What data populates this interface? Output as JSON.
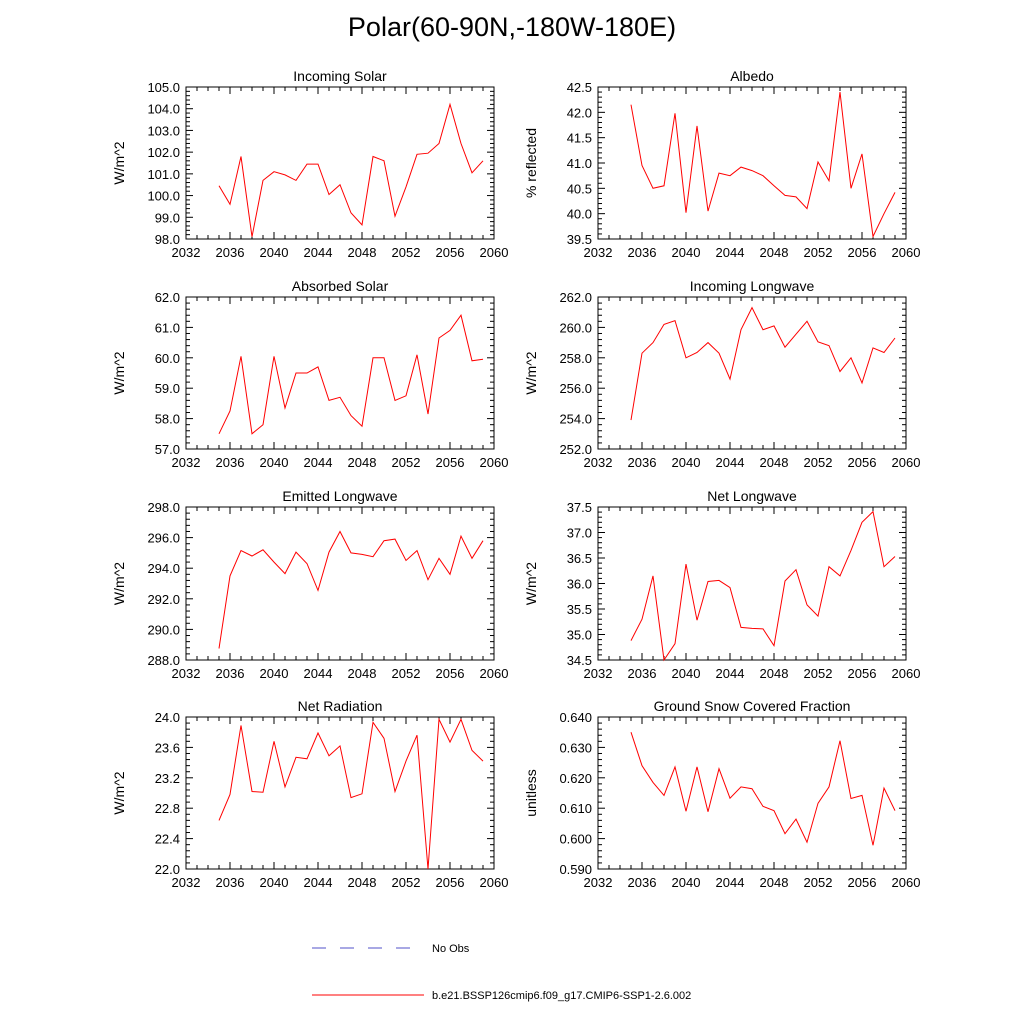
{
  "title": "Polar(60-90N,-180W-180E)",
  "legend": {
    "entries": [
      {
        "label": "No Obs",
        "color": "#5050c8",
        "style": "dashed"
      },
      {
        "label": "b.e21.BSSP126cmip6.f09_g17.CMIP6-SSP1-2.6.002",
        "color": "#ff0000",
        "style": "solid"
      }
    ]
  },
  "chart_data": [
    {
      "type": "line",
      "title": "Incoming Solar",
      "xlabel": "",
      "ylabel": "W/m^2",
      "xlim": [
        2032,
        2060
      ],
      "xticks": [
        2032,
        2036,
        2040,
        2044,
        2048,
        2052,
        2056,
        2060
      ],
      "ylim": [
        98.0,
        105.0
      ],
      "yticks": [
        98.0,
        99.0,
        100.0,
        101.0,
        102.0,
        103.0,
        104.0,
        105.0
      ],
      "ytick_labels": [
        "98.0",
        "99.0",
        "100.0",
        "101.0",
        "102.0",
        "103.0",
        "104.0",
        "105.0"
      ],
      "series": [
        {
          "name": "b.e21.BSSP126cmip6.f09_g17.CMIP6-SSP1-2.6.002",
          "color": "#ff0000",
          "x": [
            2035,
            2036,
            2037,
            2038,
            2039,
            2040,
            2041,
            2042,
            2043,
            2044,
            2045,
            2046,
            2047,
            2048,
            2049,
            2050,
            2051,
            2052,
            2053,
            2054,
            2055,
            2056,
            2057,
            2058,
            2059
          ],
          "y": [
            100.45,
            99.6,
            101.8,
            98.1,
            100.7,
            101.1,
            100.95,
            100.7,
            101.45,
            101.45,
            100.05,
            100.5,
            99.2,
            98.65,
            101.8,
            101.6,
            99.05,
            100.4,
            101.9,
            101.95,
            102.4,
            104.2,
            102.4,
            101.05,
            101.6
          ]
        }
      ]
    },
    {
      "type": "line",
      "title": "Albedo",
      "xlabel": "",
      "ylabel": "% reflected",
      "xlim": [
        2032,
        2060
      ],
      "xticks": [
        2032,
        2036,
        2040,
        2044,
        2048,
        2052,
        2056,
        2060
      ],
      "ylim": [
        39.5,
        42.5
      ],
      "yticks": [
        39.5,
        40.0,
        40.5,
        41.0,
        41.5,
        42.0,
        42.5
      ],
      "ytick_labels": [
        "39.5",
        "40.0",
        "40.5",
        "41.0",
        "41.5",
        "42.0",
        "42.5"
      ],
      "series": [
        {
          "name": "b.e21.BSSP126cmip6.f09_g17.CMIP6-SSP1-2.6.002",
          "color": "#ff0000",
          "x": [
            2035,
            2036,
            2037,
            2038,
            2039,
            2040,
            2041,
            2042,
            2043,
            2044,
            2045,
            2046,
            2047,
            2048,
            2049,
            2050,
            2051,
            2052,
            2053,
            2054,
            2055,
            2056,
            2057,
            2058,
            2059
          ],
          "y": [
            42.15,
            40.95,
            40.5,
            40.55,
            41.98,
            40.02,
            41.73,
            40.05,
            40.8,
            40.75,
            40.92,
            40.85,
            40.75,
            40.55,
            40.36,
            40.33,
            40.1,
            41.02,
            40.65,
            42.4,
            40.5,
            41.18,
            39.55,
            40.0,
            40.42
          ]
        }
      ]
    },
    {
      "type": "line",
      "title": "Absorbed Solar",
      "xlabel": "",
      "ylabel": "W/m^2",
      "xlim": [
        2032,
        2060
      ],
      "xticks": [
        2032,
        2036,
        2040,
        2044,
        2048,
        2052,
        2056,
        2060
      ],
      "ylim": [
        57.0,
        62.0
      ],
      "yticks": [
        57.0,
        58.0,
        59.0,
        60.0,
        61.0,
        62.0
      ],
      "ytick_labels": [
        "57.0",
        "58.0",
        "59.0",
        "60.0",
        "61.0",
        "62.0"
      ],
      "series": [
        {
          "name": "b.e21.BSSP126cmip6.f09_g17.CMIP6-SSP1-2.6.002",
          "color": "#ff0000",
          "x": [
            2035,
            2036,
            2037,
            2038,
            2039,
            2040,
            2041,
            2042,
            2043,
            2044,
            2045,
            2046,
            2047,
            2048,
            2049,
            2050,
            2051,
            2052,
            2053,
            2054,
            2055,
            2056,
            2057,
            2058,
            2059
          ],
          "y": [
            57.5,
            58.25,
            60.05,
            57.5,
            57.8,
            60.05,
            58.35,
            59.5,
            59.5,
            59.7,
            58.6,
            58.7,
            58.1,
            57.75,
            60.0,
            60.0,
            58.6,
            58.75,
            60.1,
            58.15,
            60.65,
            60.9,
            61.4,
            59.9,
            59.95
          ]
        }
      ]
    },
    {
      "type": "line",
      "title": "Incoming Longwave",
      "xlabel": "",
      "ylabel": "W/m^2",
      "xlim": [
        2032,
        2060
      ],
      "xticks": [
        2032,
        2036,
        2040,
        2044,
        2048,
        2052,
        2056,
        2060
      ],
      "ylim": [
        252.0,
        262.0
      ],
      "yticks": [
        252.0,
        254.0,
        256.0,
        258.0,
        260.0,
        262.0
      ],
      "ytick_labels": [
        "252.0",
        "254.0",
        "256.0",
        "258.0",
        "260.0",
        "262.0"
      ],
      "series": [
        {
          "name": "b.e21.BSSP126cmip6.f09_g17.CMIP6-SSP1-2.6.002",
          "color": "#ff0000",
          "x": [
            2035,
            2036,
            2037,
            2038,
            2039,
            2040,
            2041,
            2042,
            2043,
            2044,
            2045,
            2046,
            2047,
            2048,
            2049,
            2050,
            2051,
            2052,
            2053,
            2054,
            2055,
            2056,
            2057,
            2058,
            2059
          ],
          "y": [
            253.9,
            258.3,
            259.0,
            260.2,
            260.45,
            258.0,
            258.35,
            259.0,
            258.3,
            256.6,
            259.85,
            261.3,
            259.85,
            260.1,
            258.7,
            259.55,
            260.4,
            259.05,
            258.8,
            257.1,
            258.0,
            256.35,
            258.65,
            258.35,
            259.3
          ]
        }
      ]
    },
    {
      "type": "line",
      "title": "Emitted Longwave",
      "xlabel": "",
      "ylabel": "W/m^2",
      "xlim": [
        2032,
        2060
      ],
      "xticks": [
        2032,
        2036,
        2040,
        2044,
        2048,
        2052,
        2056,
        2060
      ],
      "ylim": [
        288.0,
        298.0
      ],
      "yticks": [
        288.0,
        290.0,
        292.0,
        294.0,
        296.0,
        298.0
      ],
      "ytick_labels": [
        "288.0",
        "290.0",
        "292.0",
        "294.0",
        "296.0",
        "298.0"
      ],
      "series": [
        {
          "name": "b.e21.BSSP126cmip6.f09_g17.CMIP6-SSP1-2.6.002",
          "color": "#ff0000",
          "x": [
            2035,
            2036,
            2037,
            2038,
            2039,
            2040,
            2041,
            2042,
            2043,
            2044,
            2045,
            2046,
            2047,
            2048,
            2049,
            2050,
            2051,
            2052,
            2053,
            2054,
            2055,
            2056,
            2057,
            2058,
            2059
          ],
          "y": [
            288.75,
            293.5,
            295.15,
            294.8,
            295.2,
            294.4,
            293.65,
            295.05,
            294.3,
            292.55,
            295.05,
            296.4,
            295.0,
            294.9,
            294.75,
            295.8,
            295.9,
            294.5,
            295.15,
            293.25,
            294.65,
            293.6,
            296.1,
            294.65,
            295.8
          ]
        }
      ]
    },
    {
      "type": "line",
      "title": "Net Longwave",
      "xlabel": "",
      "ylabel": "W/m^2",
      "xlim": [
        2032,
        2060
      ],
      "xticks": [
        2032,
        2036,
        2040,
        2044,
        2048,
        2052,
        2056,
        2060
      ],
      "ylim": [
        34.5,
        37.5
      ],
      "yticks": [
        34.5,
        35.0,
        35.5,
        36.0,
        36.5,
        37.0,
        37.5
      ],
      "ytick_labels": [
        "34.5",
        "35.0",
        "35.5",
        "36.0",
        "36.5",
        "37.0",
        "37.5"
      ],
      "series": [
        {
          "name": "b.e21.BSSP126cmip6.f09_g17.CMIP6-SSP1-2.6.002",
          "color": "#ff0000",
          "x": [
            2035,
            2036,
            2037,
            2038,
            2039,
            2040,
            2041,
            2042,
            2043,
            2044,
            2045,
            2046,
            2047,
            2048,
            2049,
            2050,
            2051,
            2052,
            2053,
            2054,
            2055,
            2056,
            2057,
            2058,
            2059
          ],
          "y": [
            34.88,
            35.3,
            36.15,
            34.5,
            34.82,
            36.38,
            35.28,
            36.04,
            36.06,
            35.92,
            35.14,
            35.12,
            35.11,
            34.78,
            36.05,
            36.27,
            35.58,
            35.36,
            36.33,
            36.15,
            36.65,
            37.2,
            37.41,
            36.33,
            36.53
          ]
        }
      ]
    },
    {
      "type": "line",
      "title": "Net Radiation",
      "xlabel": "",
      "ylabel": "W/m^2",
      "xlim": [
        2032,
        2060
      ],
      "xticks": [
        2032,
        2036,
        2040,
        2044,
        2048,
        2052,
        2056,
        2060
      ],
      "ylim": [
        22.0,
        24.0
      ],
      "yticks": [
        22.0,
        22.4,
        22.8,
        23.2,
        23.6,
        24.0
      ],
      "ytick_labels": [
        "22.0",
        "22.4",
        "22.8",
        "23.2",
        "23.6",
        "24.0"
      ],
      "series": [
        {
          "name": "b.e21.BSSP126cmip6.f09_g17.CMIP6-SSP1-2.6.002",
          "color": "#ff0000",
          "x": [
            2035,
            2036,
            2037,
            2038,
            2039,
            2040,
            2041,
            2042,
            2043,
            2044,
            2045,
            2046,
            2047,
            2048,
            2049,
            2050,
            2051,
            2052,
            2053,
            2054,
            2055,
            2056,
            2057,
            2058,
            2059
          ],
          "y": [
            22.64,
            22.98,
            23.89,
            23.02,
            23.01,
            23.68,
            23.08,
            23.47,
            23.45,
            23.79,
            23.49,
            23.62,
            22.94,
            22.99,
            23.93,
            23.72,
            23.02,
            23.42,
            23.76,
            22.0,
            23.97,
            23.67,
            23.97,
            23.56,
            23.42
          ]
        }
      ]
    },
    {
      "type": "line",
      "title": "Ground Snow Covered Fraction",
      "xlabel": "",
      "ylabel": "unitless",
      "xlim": [
        2032,
        2060
      ],
      "xticks": [
        2032,
        2036,
        2040,
        2044,
        2048,
        2052,
        2056,
        2060
      ],
      "ylim": [
        0.59,
        0.64
      ],
      "yticks": [
        0.59,
        0.6,
        0.61,
        0.62,
        0.63,
        0.64
      ],
      "ytick_labels": [
        "0.590",
        "0.600",
        "0.610",
        "0.620",
        "0.630",
        "0.640"
      ],
      "series": [
        {
          "name": "b.e21.BSSP126cmip6.f09_g17.CMIP6-SSP1-2.6.002",
          "color": "#ff0000",
          "x": [
            2035,
            2036,
            2037,
            2038,
            2039,
            2040,
            2041,
            2042,
            2043,
            2044,
            2045,
            2046,
            2047,
            2048,
            2049,
            2050,
            2051,
            2052,
            2053,
            2054,
            2055,
            2056,
            2057,
            2058,
            2059
          ],
          "y": [
            0.635,
            0.624,
            0.6185,
            0.6142,
            0.6236,
            0.609,
            0.6236,
            0.6088,
            0.623,
            0.6133,
            0.617,
            0.6164,
            0.6106,
            0.6092,
            0.6016,
            0.6064,
            0.5988,
            0.6116,
            0.617,
            0.6322,
            0.6132,
            0.6142,
            0.5978,
            0.6166,
            0.6092
          ]
        }
      ]
    }
  ]
}
